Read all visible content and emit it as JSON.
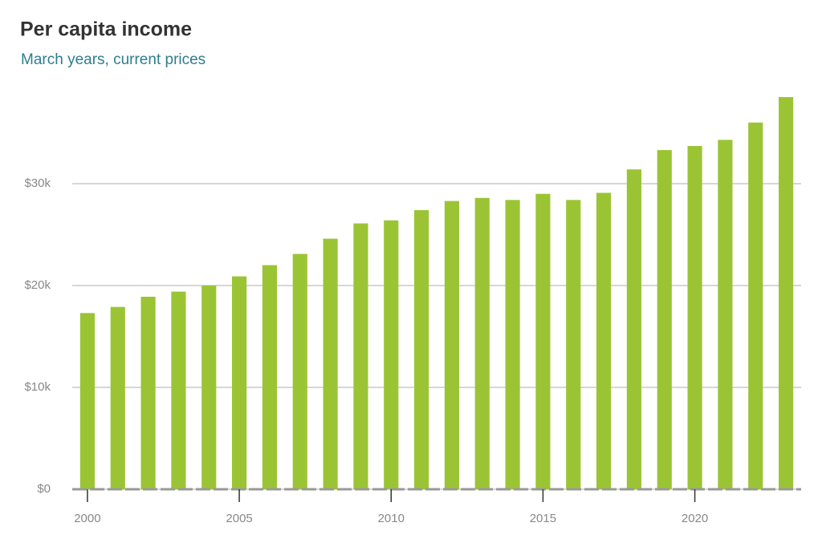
{
  "chart_data": {
    "type": "bar",
    "title": "Per capita income",
    "subtitle": "March years, current prices",
    "x": [
      2000,
      2001,
      2002,
      2003,
      2004,
      2005,
      2006,
      2007,
      2008,
      2009,
      2010,
      2011,
      2012,
      2013,
      2014,
      2015,
      2016,
      2017,
      2018,
      2019,
      2020,
      2021,
      2022,
      2023
    ],
    "values": [
      17300,
      17900,
      18900,
      19400,
      20000,
      20900,
      22000,
      23100,
      24600,
      26100,
      26400,
      27400,
      28300,
      28600,
      28400,
      29000,
      28400,
      29100,
      31400,
      33300,
      33700,
      34300,
      36000,
      38500
    ],
    "color": "#9bc435",
    "xlim": [
      1999.5,
      2023.5
    ],
    "xticks": [
      2000,
      2005,
      2010,
      2015,
      2020
    ],
    "ylim": [
      0,
      40000
    ],
    "yticks": [
      {
        "value": 0,
        "label": "$0"
      },
      {
        "value": 10000,
        "label": "$10k"
      },
      {
        "value": 20000,
        "label": "$20k"
      },
      {
        "value": 30000,
        "label": "$30k"
      }
    ],
    "grid": true
  }
}
